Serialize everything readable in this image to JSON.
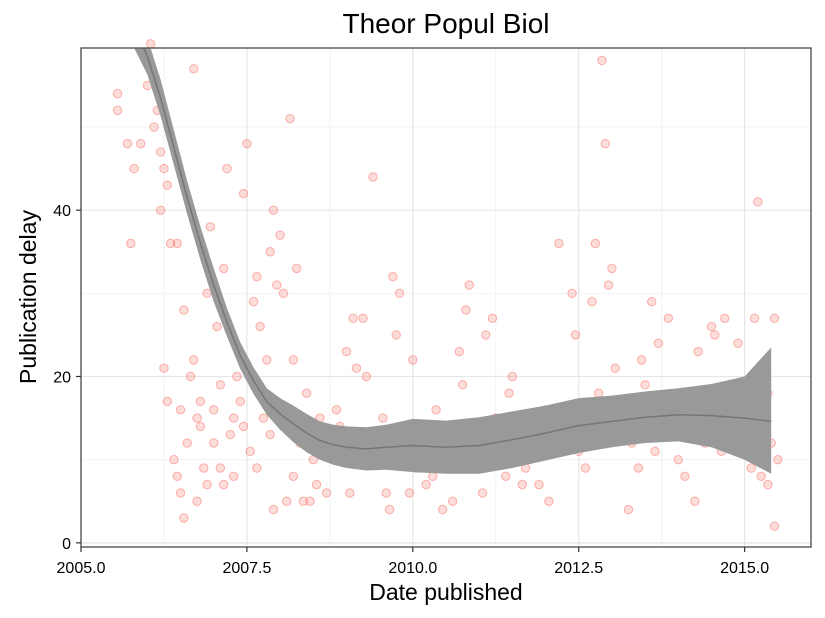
{
  "chart_data": {
    "type": "scatter",
    "title": "Theor Popul Biol",
    "xlabel": "Date published",
    "ylabel": "Publication delay",
    "xlim": [
      2005.0,
      2016.0
    ],
    "ylim": [
      -0.5,
      59.5
    ],
    "x_ticks": [
      2005.0,
      2007.5,
      2010.0,
      2012.5,
      2015.0
    ],
    "x_tick_labels": [
      "2005.0",
      "2007.5",
      "2010.0",
      "2012.5",
      "2015.0"
    ],
    "y_ticks": [
      0,
      20,
      40
    ],
    "y_tick_labels": [
      "0",
      "20",
      "40"
    ],
    "grid": true,
    "legend": "none",
    "point_color": "#f8766d",
    "smooth_color": "#333333",
    "ribbon_color": "#999999",
    "points": [
      [
        2005.55,
        54
      ],
      [
        2005.55,
        52
      ],
      [
        2005.7,
        48
      ],
      [
        2005.75,
        36
      ],
      [
        2005.8,
        45
      ],
      [
        2005.9,
        48
      ],
      [
        2006.0,
        55
      ],
      [
        2006.05,
        60
      ],
      [
        2006.1,
        50
      ],
      [
        2006.15,
        52
      ],
      [
        2006.2,
        47
      ],
      [
        2006.2,
        40
      ],
      [
        2006.25,
        45
      ],
      [
        2006.3,
        43
      ],
      [
        2006.35,
        36
      ],
      [
        2006.45,
        36
      ],
      [
        2006.5,
        16
      ],
      [
        2006.55,
        28
      ],
      [
        2006.65,
        20
      ],
      [
        2006.7,
        57
      ],
      [
        2006.75,
        15
      ],
      [
        2006.8,
        17
      ],
      [
        2006.9,
        30
      ],
      [
        2006.95,
        38
      ],
      [
        2007.05,
        26
      ],
      [
        2007.1,
        19
      ],
      [
        2007.15,
        33
      ],
      [
        2007.2,
        45
      ],
      [
        2007.3,
        15
      ],
      [
        2007.4,
        17
      ],
      [
        2007.45,
        42
      ],
      [
        2007.5,
        48
      ],
      [
        2007.6,
        29
      ],
      [
        2007.65,
        32
      ],
      [
        2007.7,
        26
      ],
      [
        2007.8,
        22
      ],
      [
        2007.85,
        35
      ],
      [
        2007.9,
        40
      ],
      [
        2007.95,
        31
      ],
      [
        2008.0,
        37
      ],
      [
        2008.05,
        30
      ],
      [
        2008.15,
        51
      ],
      [
        2008.2,
        22
      ],
      [
        2008.25,
        33
      ],
      [
        2006.25,
        21
      ],
      [
        2006.3,
        17
      ],
      [
        2006.4,
        10
      ],
      [
        2006.45,
        8
      ],
      [
        2006.5,
        6
      ],
      [
        2006.55,
        3
      ],
      [
        2006.6,
        12
      ],
      [
        2006.7,
        22
      ],
      [
        2006.8,
        14
      ],
      [
        2006.85,
        9
      ],
      [
        2006.9,
        7
      ],
      [
        2007.0,
        16
      ],
      [
        2007.0,
        12
      ],
      [
        2007.1,
        9
      ],
      [
        2007.15,
        7
      ],
      [
        2007.25,
        13
      ],
      [
        2007.3,
        8
      ],
      [
        2007.35,
        20
      ],
      [
        2007.45,
        14
      ],
      [
        2007.55,
        11
      ],
      [
        2007.65,
        9
      ],
      [
        2007.75,
        15
      ],
      [
        2007.85,
        13
      ],
      [
        2007.9,
        4
      ],
      [
        2007.95,
        17
      ],
      [
        2008.1,
        5
      ],
      [
        2008.15,
        14
      ],
      [
        2008.2,
        8
      ],
      [
        2008.3,
        12
      ],
      [
        2008.35,
        5
      ],
      [
        2008.4,
        18
      ],
      [
        2008.45,
        13
      ],
      [
        2008.5,
        10
      ],
      [
        2008.55,
        7
      ],
      [
        2008.6,
        15
      ],
      [
        2008.7,
        6
      ],
      [
        2008.75,
        11
      ],
      [
        2008.85,
        16
      ],
      [
        2008.9,
        14
      ],
      [
        2009.0,
        23
      ],
      [
        2009.1,
        27
      ],
      [
        2009.15,
        21
      ],
      [
        2009.25,
        27
      ],
      [
        2009.3,
        20
      ],
      [
        2009.4,
        44
      ],
      [
        2009.45,
        12
      ],
      [
        2009.5,
        10
      ],
      [
        2009.55,
        15
      ],
      [
        2009.6,
        6
      ],
      [
        2009.7,
        32
      ],
      [
        2009.75,
        25
      ],
      [
        2009.8,
        30
      ],
      [
        2009.85,
        14
      ],
      [
        2009.9,
        11
      ],
      [
        2009.95,
        6
      ],
      [
        2010.0,
        22
      ],
      [
        2010.05,
        9
      ],
      [
        2010.1,
        14
      ],
      [
        2010.15,
        12
      ],
      [
        2010.2,
        7
      ],
      [
        2010.3,
        8
      ],
      [
        2010.35,
        16
      ],
      [
        2010.4,
        12
      ],
      [
        2010.5,
        10
      ],
      [
        2010.55,
        14
      ],
      [
        2010.6,
        5
      ],
      [
        2010.7,
        23
      ],
      [
        2010.8,
        28
      ],
      [
        2010.85,
        31
      ],
      [
        2010.9,
        9
      ],
      [
        2011.0,
        12
      ],
      [
        2011.1,
        25
      ],
      [
        2011.2,
        27
      ],
      [
        2011.25,
        15
      ],
      [
        2011.3,
        10
      ],
      [
        2011.4,
        8
      ],
      [
        2011.5,
        20
      ],
      [
        2011.55,
        14
      ],
      [
        2011.6,
        11
      ],
      [
        2011.7,
        9
      ],
      [
        2011.8,
        13
      ],
      [
        2011.9,
        7
      ],
      [
        2012.0,
        16
      ],
      [
        2012.1,
        12
      ],
      [
        2012.2,
        36
      ],
      [
        2012.3,
        15
      ],
      [
        2012.4,
        30
      ],
      [
        2012.45,
        25
      ],
      [
        2012.5,
        11
      ],
      [
        2012.6,
        9
      ],
      [
        2012.7,
        29
      ],
      [
        2012.75,
        36
      ],
      [
        2012.8,
        18
      ],
      [
        2012.85,
        58
      ],
      [
        2012.9,
        48
      ],
      [
        2012.95,
        31
      ],
      [
        2013.0,
        33
      ],
      [
        2013.05,
        21
      ],
      [
        2013.1,
        14
      ],
      [
        2013.2,
        17
      ],
      [
        2013.3,
        12
      ],
      [
        2013.4,
        9
      ],
      [
        2013.45,
        22
      ],
      [
        2013.5,
        19
      ],
      [
        2013.6,
        29
      ],
      [
        2013.7,
        24
      ],
      [
        2013.75,
        13
      ],
      [
        2013.85,
        27
      ],
      [
        2013.9,
        16
      ],
      [
        2014.0,
        10
      ],
      [
        2014.1,
        8
      ],
      [
        2014.2,
        14
      ],
      [
        2014.3,
        23
      ],
      [
        2014.4,
        12
      ],
      [
        2014.5,
        26
      ],
      [
        2014.55,
        25
      ],
      [
        2014.6,
        14
      ],
      [
        2014.7,
        27
      ],
      [
        2014.8,
        17
      ],
      [
        2014.9,
        24
      ],
      [
        2015.0,
        12
      ],
      [
        2015.1,
        9
      ],
      [
        2015.15,
        27
      ],
      [
        2015.2,
        41
      ],
      [
        2015.25,
        8
      ],
      [
        2015.3,
        14
      ],
      [
        2015.35,
        7
      ],
      [
        2015.4,
        12
      ],
      [
        2015.45,
        27
      ],
      [
        2015.45,
        2
      ],
      [
        2015.5,
        10
      ],
      [
        2015.35,
        18
      ],
      [
        2014.95,
        15
      ],
      [
        2014.25,
        5
      ],
      [
        2013.25,
        4
      ],
      [
        2012.05,
        5
      ],
      [
        2011.05,
        6
      ],
      [
        2010.45,
        4
      ],
      [
        2009.65,
        4
      ],
      [
        2008.45,
        5
      ],
      [
        2006.75,
        5
      ],
      [
        2009.05,
        6
      ],
      [
        2011.65,
        7
      ],
      [
        2012.55,
        13
      ],
      [
        2013.65,
        11
      ],
      [
        2014.65,
        11
      ],
      [
        2010.75,
        19
      ],
      [
        2011.45,
        18
      ]
    ],
    "smooth": {
      "x": [
        2005.8,
        2006.0,
        2006.2,
        2006.4,
        2006.6,
        2006.8,
        2007.0,
        2007.2,
        2007.4,
        2007.6,
        2007.8,
        2008.0,
        2008.2,
        2008.4,
        2008.6,
        2008.8,
        2009.0,
        2009.3,
        2009.6,
        2010.0,
        2010.5,
        2011.0,
        2011.5,
        2012.0,
        2012.5,
        2013.0,
        2013.5,
        2014.0,
        2014.5,
        2015.0,
        2015.4
      ],
      "y": [
        62,
        58.5,
        53.5,
        47.5,
        41.5,
        36,
        31,
        26.5,
        22.5,
        19.5,
        17,
        15.5,
        14.3,
        13.2,
        12.3,
        11.8,
        11.5,
        11.3,
        11.5,
        11.7,
        11.5,
        11.7,
        12.4,
        13.2,
        14.1,
        14.6,
        15.1,
        15.4,
        15.3,
        15,
        14.6
      ],
      "lower": [
        59.5,
        56.3,
        51.3,
        45.4,
        39.5,
        34,
        29,
        24.8,
        20.9,
        17.9,
        15.4,
        13.6,
        12.1,
        10.9,
        10.0,
        9.4,
        9.0,
        8.7,
        8.8,
        8.5,
        8.3,
        8.3,
        9.0,
        9.9,
        10.8,
        11.5,
        12.0,
        12.2,
        11.5,
        10.0,
        8.3
      ],
      "upper": [
        64.5,
        60.7,
        55.7,
        49.6,
        43.5,
        38,
        33,
        28.2,
        24.1,
        21.1,
        18.6,
        17.4,
        16.5,
        15.5,
        14.6,
        14.2,
        14.0,
        13.9,
        14.2,
        14.9,
        14.7,
        15.1,
        15.8,
        16.5,
        17.4,
        17.7,
        18.2,
        18.6,
        19.1,
        20.0,
        23.5
      ]
    }
  }
}
